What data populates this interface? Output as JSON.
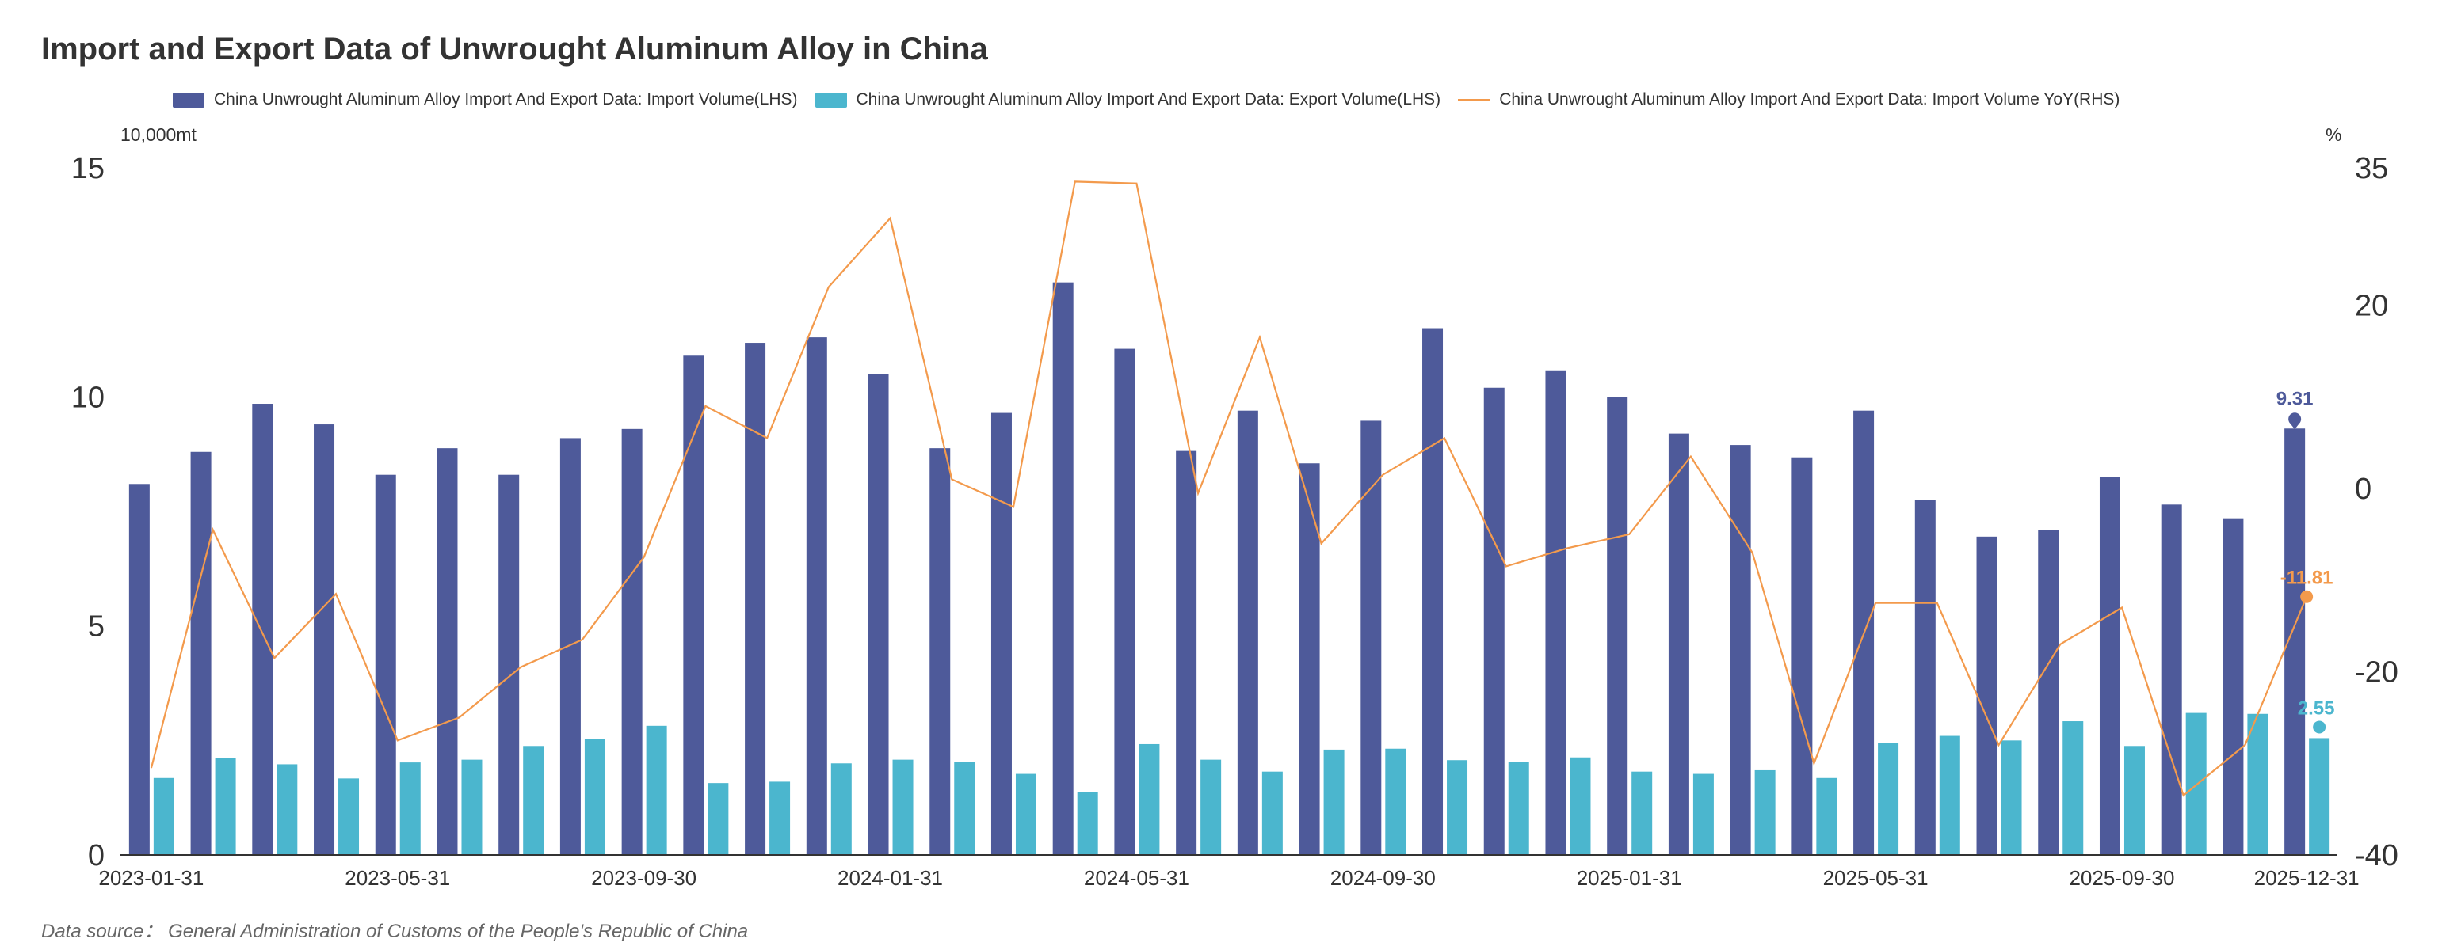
{
  "chart_data": {
    "type": "bar+line",
    "title": "Import and Export Data of Unwrought Aluminum Alloy in China",
    "left_unit": "10,000mt",
    "right_unit": "%",
    "left_ylim": [
      0,
      15
    ],
    "left_ticks": [
      "0",
      "5",
      "10",
      "15"
    ],
    "right_ylim": [
      -40,
      35
    ],
    "right_ticks": [
      "-40",
      "-20",
      "0",
      "20",
      "35"
    ],
    "x_tick_labels": [
      {
        "index": 1,
        "label": "2023-01-31"
      },
      {
        "index": 5,
        "label": "2023-05-31"
      },
      {
        "index": 9,
        "label": "2023-09-30"
      },
      {
        "index": 13,
        "label": "2024-01-31"
      },
      {
        "index": 17,
        "label": "2024-05-31"
      },
      {
        "index": 21,
        "label": "2024-09-30"
      },
      {
        "index": 25,
        "label": "2025-01-31"
      },
      {
        "index": 29,
        "label": "2025-05-31"
      },
      {
        "index": 33,
        "label": "2025-09-30"
      },
      {
        "index": 36,
        "label": "2025-12-31"
      }
    ],
    "series": [
      {
        "name": "China Unwrought Aluminum Alloy Import And Export Data: Import Volume(LHS)",
        "axis": "left",
        "kind": "bar",
        "color": "#4E5A9A",
        "values": [
          8.1,
          8.8,
          9.85,
          9.4,
          8.3,
          8.88,
          8.3,
          9.1,
          9.3,
          10.9,
          11.18,
          11.3,
          10.5,
          8.88,
          9.65,
          12.5,
          11.05,
          8.82,
          9.7,
          8.55,
          9.48,
          11.5,
          10.2,
          10.58,
          10.0,
          9.2,
          8.95,
          8.68,
          9.7,
          7.75,
          6.95,
          7.1,
          8.25,
          7.65,
          7.35,
          9.31
        ]
      },
      {
        "name": "China Unwrought Aluminum Alloy Import And Export Data: Export Volume(LHS)",
        "axis": "left",
        "kind": "bar",
        "color": "#4BB6CE",
        "values": [
          1.68,
          2.12,
          1.98,
          1.67,
          2.02,
          2.08,
          2.38,
          2.54,
          2.82,
          1.57,
          1.6,
          2.0,
          2.08,
          2.03,
          1.77,
          1.38,
          2.42,
          2.08,
          1.82,
          2.3,
          2.32,
          2.07,
          2.03,
          2.13,
          1.82,
          1.77,
          1.85,
          1.68,
          2.45,
          2.6,
          2.5,
          2.92,
          2.38,
          3.1,
          3.08,
          2.55
        ]
      },
      {
        "name": "China Unwrought Aluminum Alloy Import And Export Data: Import Volume YoY(RHS)",
        "axis": "right",
        "kind": "line",
        "color": "#F39A4C",
        "values": [
          -30.5,
          -4.5,
          -18.5,
          -11.5,
          -27.5,
          -25.0,
          -19.5,
          -16.5,
          -7.5,
          9.0,
          5.5,
          22.0,
          29.5,
          1.0,
          -2.0,
          33.5,
          33.3,
          -0.5,
          16.5,
          -6.0,
          1.5,
          5.5,
          -8.5,
          -6.5,
          -5.0,
          3.5,
          -7.0,
          -30.0,
          -12.5,
          -12.5,
          -28.0,
          -17.0,
          -13.0,
          -33.5,
          -28.0,
          -11.81
        ]
      }
    ],
    "end_labels": {
      "import_volume": "9.31",
      "yoy": "-11.81",
      "export_volume": "2.55"
    }
  },
  "footer": {
    "source": "Data source： General Administration of Customs of the People's Republic of China"
  }
}
